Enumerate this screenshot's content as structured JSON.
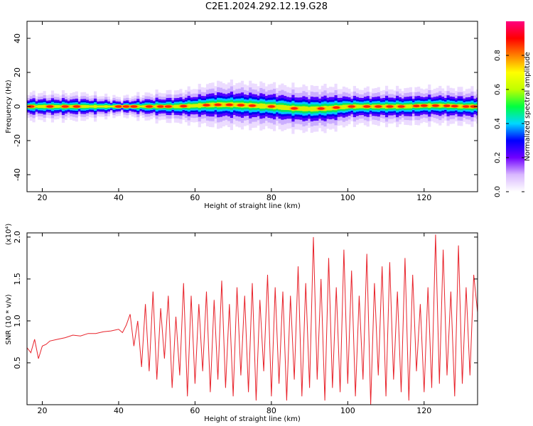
{
  "page": {
    "title": "C2E1.2024.292.12.19.G28"
  },
  "chart_data": [
    {
      "type": "heatmap",
      "title": "C2E1.2024.292.12.19.G28",
      "xlabel": "Height of straight line (km)",
      "ylabel": "Frequency (Hz)",
      "xlim": [
        16,
        134
      ],
      "ylim": [
        -50,
        50
      ],
      "xticks": [
        20,
        40,
        60,
        80,
        100,
        120
      ],
      "yticks": [
        -40,
        -20,
        0,
        20,
        40
      ],
      "colorbar": {
        "label": "Normalized spectral amplitude",
        "range": [
          0,
          1
        ],
        "ticks": [
          "0.0",
          "0.2",
          "0.4",
          "0.6",
          "0.8"
        ],
        "tick_values": [
          0,
          0.2,
          0.4,
          0.6,
          0.8
        ],
        "colormap": [
          "#ffffff",
          "#d9b8ff",
          "#7000ff",
          "#0000ff",
          "#00d8ff",
          "#00ff40",
          "#c0ff00",
          "#ffff00",
          "#ff8000",
          "#ff0000",
          "#ff0080"
        ]
      },
      "band": {
        "x": [
          16,
          30,
          40,
          48,
          55,
          60,
          65,
          70,
          75,
          80,
          85,
          90,
          95,
          100,
          105,
          110,
          115,
          120,
          125,
          130,
          134
        ],
        "center_hz": [
          0,
          0,
          0,
          0,
          0,
          0.5,
          1,
          1,
          0.5,
          0,
          -1,
          -1.5,
          -1,
          0,
          0,
          0,
          0,
          0.5,
          0.5,
          0,
          0
        ],
        "halfwidth_hz": [
          3,
          3,
          2,
          3,
          3.5,
          4,
          5,
          5,
          5,
          5,
          5,
          5,
          5,
          4,
          4,
          4,
          4,
          4,
          4,
          4,
          4
        ]
      },
      "peaks_x": [
        17,
        22,
        26,
        29,
        40,
        42,
        44,
        48,
        51,
        53,
        57,
        63,
        66,
        69,
        72,
        75,
        80,
        86,
        93,
        97,
        101,
        105,
        108,
        111,
        114,
        118,
        120,
        123,
        126,
        128,
        131,
        133
      ]
    },
    {
      "type": "line",
      "xlabel": "Height of straight line (km)",
      "ylabel": "SNR (10 * v/v)",
      "y_multiplier": "(x10⁴)",
      "xlim": [
        16,
        134
      ],
      "ylim": [
        0,
        2.05
      ],
      "xticks": [
        20,
        40,
        60,
        80,
        100,
        120
      ],
      "yticks": [
        "0.5",
        "1.0",
        "1.5",
        "2.0"
      ],
      "ytick_values": [
        0.5,
        1.0,
        1.5,
        2.0
      ],
      "line_color": "#e8222a",
      "series": [
        {
          "x": [
            16,
            17,
            18,
            19,
            20,
            21,
            22,
            24,
            26,
            28,
            30,
            32,
            34,
            36,
            38,
            40,
            41,
            42,
            43,
            44,
            45,
            46,
            47,
            48,
            49,
            50,
            51,
            52,
            53,
            54,
            55,
            56,
            57,
            58,
            59,
            60,
            61,
            62,
            63,
            64,
            65,
            66,
            67,
            68,
            69,
            70,
            71,
            72,
            73,
            74,
            75,
            76,
            77,
            78,
            79,
            80,
            81,
            82,
            83,
            84,
            85,
            86,
            87,
            88,
            89,
            90,
            91,
            92,
            93,
            94,
            95,
            96,
            97,
            98,
            99,
            100,
            101,
            102,
            103,
            104,
            105,
            106,
            107,
            108,
            109,
            110,
            111,
            112,
            113,
            114,
            115,
            116,
            117,
            118,
            119,
            120,
            121,
            122,
            123,
            124,
            125,
            126,
            127,
            128,
            129,
            130,
            131,
            132,
            133,
            134
          ],
          "y": [
            0.68,
            0.62,
            0.78,
            0.55,
            0.7,
            0.72,
            0.76,
            0.78,
            0.8,
            0.83,
            0.82,
            0.85,
            0.85,
            0.87,
            0.88,
            0.9,
            0.86,
            0.95,
            1.08,
            0.7,
            1.0,
            0.45,
            1.2,
            0.4,
            1.35,
            0.3,
            1.15,
            0.55,
            1.3,
            0.2,
            1.05,
            0.35,
            1.45,
            0.1,
            1.3,
            0.25,
            1.2,
            0.4,
            1.35,
            0.15,
            1.25,
            0.3,
            1.48,
            0.2,
            1.2,
            0.1,
            1.4,
            0.35,
            1.3,
            0.15,
            1.45,
            0.05,
            1.25,
            0.4,
            1.55,
            0.1,
            1.4,
            0.25,
            1.35,
            0.05,
            1.3,
            0.3,
            1.65,
            0.1,
            1.45,
            0.2,
            2.0,
            0.3,
            1.5,
            0.05,
            1.75,
            0.2,
            1.4,
            0.15,
            1.85,
            0.25,
            1.6,
            0.1,
            1.3,
            0.3,
            1.8,
            0.0,
            1.45,
            0.35,
            1.65,
            0.1,
            1.7,
            0.3,
            1.35,
            0.15,
            1.75,
            0.05,
            1.55,
            0.4,
            1.2,
            0.15,
            1.4,
            0.2,
            2.03,
            0.25,
            1.85,
            0.35,
            1.35,
            0.1,
            1.9,
            0.25,
            1.4,
            0.35,
            1.55,
            1.1
          ]
        }
      ]
    }
  ]
}
